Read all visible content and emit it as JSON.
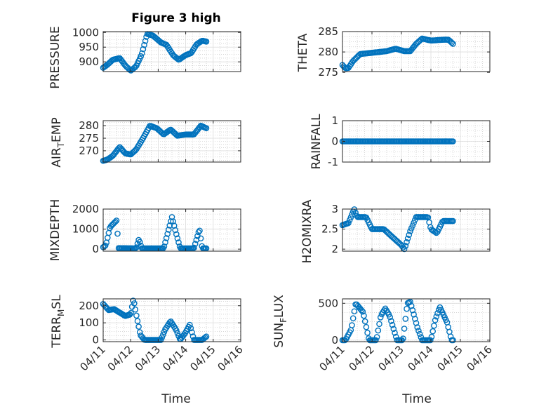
{
  "chart_data": {
    "type": "scatter",
    "title": "Figure 3 high",
    "marker_color": "#0072BD",
    "xlabel": "Time",
    "x_tick_labels": [
      "04/11",
      "04/12",
      "04/13",
      "04/14",
      "04/15",
      "04/16"
    ],
    "panels": [
      {
        "id": "pressure",
        "ylabel": "PRESSURE",
        "ylim": [
          867,
          1003
        ],
        "ytick_values": [
          900,
          950,
          1000
        ],
        "knots": [
          [
            0,
            880
          ],
          [
            0.15,
            890
          ],
          [
            0.35,
            907
          ],
          [
            0.6,
            913
          ],
          [
            0.8,
            888
          ],
          [
            1.0,
            870
          ],
          [
            1.2,
            885
          ],
          [
            1.4,
            925
          ],
          [
            1.6,
            995
          ],
          [
            1.8,
            990
          ],
          [
            2.1,
            966
          ],
          [
            2.3,
            958
          ],
          [
            2.55,
            922
          ],
          [
            2.75,
            907
          ],
          [
            3.0,
            923
          ],
          [
            3.2,
            930
          ],
          [
            3.4,
            960
          ],
          [
            3.6,
            972
          ],
          [
            3.75,
            969
          ]
        ]
      },
      {
        "id": "theta",
        "ylabel": "THETA",
        "ylim": [
          275.2,
          285
        ],
        "ytick_values": [
          275,
          280,
          285
        ],
        "knots": [
          [
            0,
            276.8
          ],
          [
            0.1,
            276
          ],
          [
            0.2,
            276.1
          ],
          [
            0.35,
            277.7
          ],
          [
            0.6,
            279.5
          ],
          [
            1.0,
            279.8
          ],
          [
            1.5,
            280.2
          ],
          [
            1.8,
            280.8
          ],
          [
            2.1,
            280.2
          ],
          [
            2.3,
            280.2
          ],
          [
            2.5,
            282
          ],
          [
            2.7,
            283.3
          ],
          [
            3.0,
            282.8
          ],
          [
            3.4,
            283
          ],
          [
            3.6,
            283
          ],
          [
            3.75,
            282
          ]
        ]
      },
      {
        "id": "air_temp",
        "ylabel": "AIR_TEMP",
        "ylim": [
          265.5,
          282
        ],
        "ytick_values": [
          270,
          275,
          280
        ],
        "knots": [
          [
            0,
            266
          ],
          [
            0.15,
            266.5
          ],
          [
            0.35,
            268
          ],
          [
            0.6,
            271.5
          ],
          [
            0.8,
            269
          ],
          [
            1.0,
            268.5
          ],
          [
            1.2,
            270.5
          ],
          [
            1.45,
            275
          ],
          [
            1.7,
            280
          ],
          [
            1.95,
            279
          ],
          [
            2.2,
            276.5
          ],
          [
            2.45,
            278.5
          ],
          [
            2.7,
            276
          ],
          [
            3.0,
            276.5
          ],
          [
            3.3,
            276.5
          ],
          [
            3.55,
            280
          ],
          [
            3.75,
            279
          ]
        ]
      },
      {
        "id": "rainfall",
        "ylabel": "RAINFALL",
        "ylim": [
          -1,
          1
        ],
        "ytick_values": [
          -1,
          0,
          1
        ],
        "knots": [
          [
            0,
            0
          ],
          [
            3.75,
            0
          ]
        ]
      },
      {
        "id": "mixdepth",
        "ylabel": "MIXDEPTH",
        "ylim": [
          -100,
          2000
        ],
        "ytick_values": [
          0,
          1000,
          2000
        ],
        "knots": [
          [
            0,
            100
          ],
          [
            0.1,
            200
          ],
          [
            0.25,
            1100
          ],
          [
            0.5,
            1450
          ],
          [
            0.55,
            50
          ],
          [
            1.2,
            40
          ],
          [
            1.3,
            500
          ],
          [
            1.4,
            40
          ],
          [
            2.2,
            40
          ],
          [
            2.5,
            1600
          ],
          [
            2.65,
            800
          ],
          [
            2.8,
            40
          ],
          [
            3.3,
            40
          ],
          [
            3.5,
            1000
          ],
          [
            3.6,
            40
          ],
          [
            3.75,
            40
          ]
        ]
      },
      {
        "id": "h2omixra",
        "ylabel": "H2OMIXRA",
        "ylim": [
          1.95,
          3
        ],
        "ytick_values": [
          2,
          2.5,
          3
        ],
        "knots": [
          [
            0,
            2.6
          ],
          [
            0.2,
            2.65
          ],
          [
            0.4,
            3.0
          ],
          [
            0.5,
            2.8
          ],
          [
            0.8,
            2.8
          ],
          [
            1.0,
            2.5
          ],
          [
            1.4,
            2.5
          ],
          [
            1.7,
            2.3
          ],
          [
            2.0,
            2.1
          ],
          [
            2.1,
            2.0
          ],
          [
            2.3,
            2.45
          ],
          [
            2.5,
            2.8
          ],
          [
            2.9,
            2.8
          ],
          [
            3.0,
            2.5
          ],
          [
            3.2,
            2.4
          ],
          [
            3.4,
            2.7
          ],
          [
            3.75,
            2.7
          ]
        ]
      },
      {
        "id": "terr_msl",
        "ylabel": "TERR_MSL",
        "ylim": [
          -10,
          240
        ],
        "ytick_values": [
          0,
          100,
          200
        ],
        "knots": [
          [
            0,
            210
          ],
          [
            0.2,
            175
          ],
          [
            0.4,
            180
          ],
          [
            0.8,
            140
          ],
          [
            1.0,
            150
          ],
          [
            1.1,
            240
          ],
          [
            1.2,
            150
          ],
          [
            1.35,
            30
          ],
          [
            1.5,
            0
          ],
          [
            2.1,
            0
          ],
          [
            2.25,
            60
          ],
          [
            2.45,
            110
          ],
          [
            2.65,
            60
          ],
          [
            2.8,
            0
          ],
          [
            3.0,
            45
          ],
          [
            3.15,
            90
          ],
          [
            3.3,
            0
          ],
          [
            3.6,
            0
          ],
          [
            3.75,
            20
          ]
        ]
      },
      {
        "id": "sun_flux",
        "ylabel": "SUN_FLUX",
        "ylim": [
          -20,
          560
        ],
        "ytick_values": [
          0,
          500
        ],
        "knots": [
          [
            0,
            0
          ],
          [
            0.1,
            0
          ],
          [
            0.3,
            150
          ],
          [
            0.45,
            500
          ],
          [
            0.7,
            380
          ],
          [
            0.9,
            0
          ],
          [
            1.15,
            0
          ],
          [
            1.3,
            330
          ],
          [
            1.45,
            430
          ],
          [
            1.6,
            330
          ],
          [
            1.85,
            0
          ],
          [
            2.05,
            0
          ],
          [
            2.2,
            500
          ],
          [
            2.3,
            520
          ],
          [
            2.55,
            160
          ],
          [
            2.7,
            0
          ],
          [
            3.0,
            0
          ],
          [
            3.15,
            280
          ],
          [
            3.3,
            450
          ],
          [
            3.55,
            240
          ],
          [
            3.7,
            0
          ],
          [
            3.75,
            0
          ]
        ]
      }
    ]
  },
  "labels": {
    "title": "Figure 3 high",
    "xlabel_left": "Time",
    "xlabel_right": "Time",
    "y_pressure": "PRESSURE",
    "y_theta": "THETA",
    "y_airtemp_a": "AIR",
    "y_airtemp_sub": "T",
    "y_airtemp_b": "EMP",
    "y_rainfall": "RAINFALL",
    "y_mixdepth": "MIXDEPTH",
    "y_h2omixra": "H2OMIXRA",
    "y_terr_a": "TERR",
    "y_terr_sub": "M",
    "y_terr_b": "SL",
    "y_sun_a": "SUN",
    "y_sun_sub": "F",
    "y_sun_b": "LUX"
  }
}
